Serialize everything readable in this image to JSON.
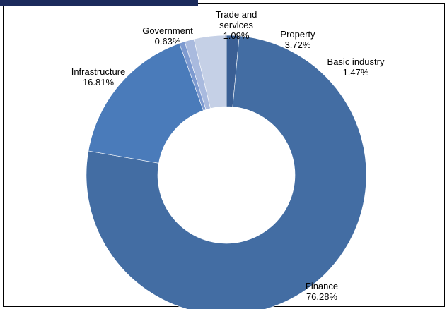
{
  "chart_data": {
    "type": "pie",
    "style": "donut",
    "title": "",
    "start_angle_deg": 0,
    "direction": "clockwise",
    "slices": [
      {
        "name": "Basic industry",
        "label_lines": [
          "Basic industry"
        ],
        "value": 1.47,
        "value_label": "1.47%",
        "color": "#3a5f94"
      },
      {
        "name": "Finance",
        "label_lines": [
          "Finance"
        ],
        "value": 76.28,
        "value_label": "76.28%",
        "color": "#436da3"
      },
      {
        "name": "Infrastructure",
        "label_lines": [
          "Infrastructure"
        ],
        "value": 16.81,
        "value_label": "16.81%",
        "color": "#4a7bba"
      },
      {
        "name": "Government",
        "label_lines": [
          "Government"
        ],
        "value": 0.63,
        "value_label": "0.63%",
        "color": "#7d9ad0"
      },
      {
        "name": "Trade and services",
        "label_lines": [
          "Trade and",
          "services"
        ],
        "value": 1.09,
        "value_label": "1.09%",
        "color": "#a9bade"
      },
      {
        "name": "Property",
        "label_lines": [
          "Property"
        ],
        "value": 3.72,
        "value_label": "3.72%",
        "color": "#c5d0e6"
      }
    ]
  }
}
